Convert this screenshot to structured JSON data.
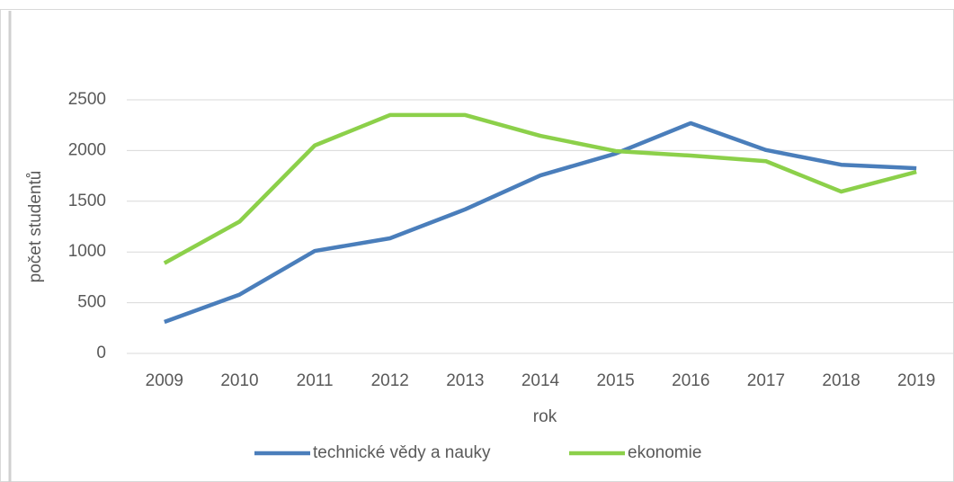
{
  "chart_data": {
    "type": "line",
    "x_label": "rok",
    "y_label": "počet studentů",
    "categories": [
      "2009",
      "2010",
      "2011",
      "2012",
      "2013",
      "2014",
      "2015",
      "2016",
      "2017",
      "2018",
      "2019"
    ],
    "series": [
      {
        "name": "technické vědy a nauky",
        "color": "#4a7ebb",
        "values": [
          310,
          580,
          1010,
          1135,
          1420,
          1755,
          1970,
          2270,
          2005,
          1860,
          1825
        ]
      },
      {
        "name": "ekonomie",
        "color": "#8cd04a",
        "values": [
          890,
          1300,
          2050,
          2350,
          2350,
          2145,
          1995,
          1950,
          1895,
          1595,
          1790
        ]
      }
    ],
    "ylim": [
      0,
      2500
    ],
    "yticks": [
      0,
      500,
      1000,
      1500,
      2000,
      2500
    ],
    "grid": true,
    "legend": "bottom"
  }
}
